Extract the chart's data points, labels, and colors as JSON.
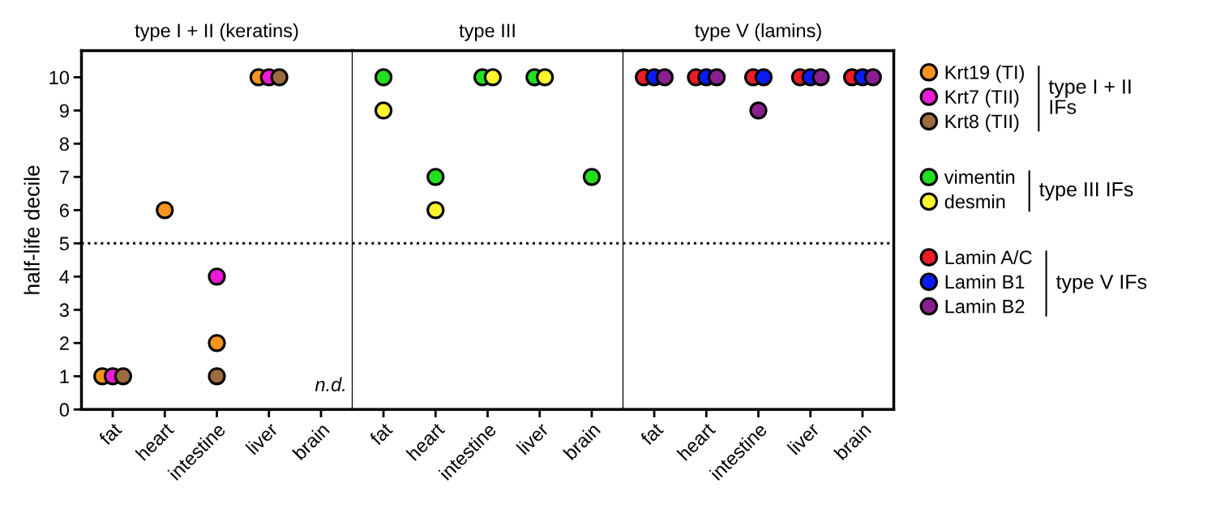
{
  "chart_data": [
    {
      "type": "scatter",
      "title": "type I + II (keratins)",
      "ylabel": "half-life decile",
      "categories": [
        "fat",
        "heart",
        "intestine",
        "liver",
        "brain"
      ],
      "series": [
        {
          "name": "Krt19 (TI)",
          "color": "#f7941d",
          "values": [
            1,
            6,
            2,
            10,
            null
          ]
        },
        {
          "name": "Krt7 (TII)",
          "color": "#ee1bd6",
          "values": [
            1,
            null,
            4,
            10,
            null
          ]
        },
        {
          "name": "Krt8 (TII)",
          "color": "#9c6b3f",
          "values": [
            1,
            null,
            1,
            10,
            null
          ]
        }
      ],
      "ylim": [
        0,
        10.8
      ],
      "yticks": [
        0,
        1,
        2,
        3,
        4,
        5,
        6,
        7,
        8,
        9,
        10
      ],
      "marker": "circle",
      "grid": false,
      "legend": "right",
      "legend_title": "type I + II\nIFs",
      "ref_lines": [
        {
          "axis": "y",
          "value": 5,
          "color": "#000000",
          "line_style": "dotted"
        }
      ],
      "annotations": [
        "n.d."
      ]
    },
    {
      "type": "scatter",
      "title": "type III",
      "categories": [
        "fat",
        "heart",
        "intestine",
        "liver",
        "brain"
      ],
      "series": [
        {
          "name": "vimentin",
          "color": "#22e01e",
          "values": [
            10,
            7,
            10,
            10,
            7
          ]
        },
        {
          "name": "desmin",
          "color": "#fff22e",
          "values": [
            9,
            6,
            10,
            10,
            null
          ]
        }
      ],
      "ylim": [
        0,
        10.8
      ],
      "marker": "circle",
      "grid": false,
      "legend": "right",
      "legend_title": "type III IFs",
      "tick_labels": "x",
      "ref_lines": [
        {
          "axis": "y",
          "value": 5,
          "color": "#000000",
          "line_style": "dotted"
        }
      ]
    },
    {
      "type": "scatter",
      "title": "type V (lamins)",
      "categories": [
        "fat",
        "heart",
        "intestine",
        "liver",
        "brain"
      ],
      "series": [
        {
          "name": "Lamin A/C",
          "color": "#ee1c25",
          "values": [
            10,
            10,
            10,
            10,
            10
          ]
        },
        {
          "name": "Lamin B1",
          "color": "#0a1cf5",
          "values": [
            10,
            10,
            10,
            10,
            10
          ]
        },
        {
          "name": "Lamin B2",
          "color": "#8b1f8f",
          "values": [
            10,
            10,
            9,
            10,
            10
          ]
        }
      ],
      "ylim": [
        0,
        10.8
      ],
      "marker": "circle",
      "grid": false,
      "legend": "right",
      "legend_title": "type V IFs",
      "tick_labels": "x",
      "ref_lines": [
        {
          "axis": "y",
          "value": 5,
          "color": "#000000",
          "line_style": "dotted"
        }
      ]
    }
  ]
}
